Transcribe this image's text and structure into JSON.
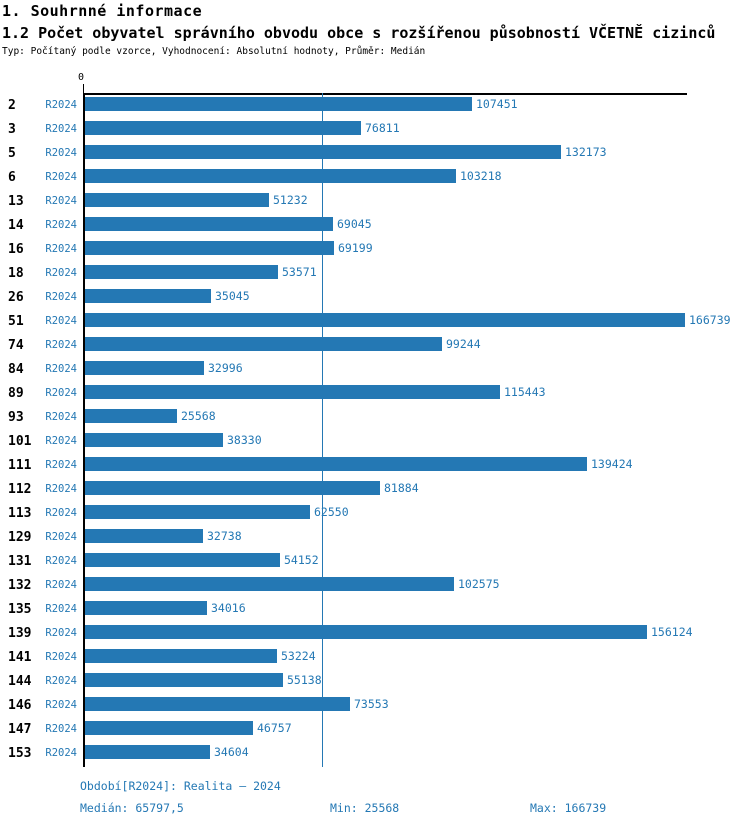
{
  "header": {
    "title": "1. Souhrnné informace",
    "subtitle": "1.2 Počet obyvatel správního obvodu obce s rozšířenou působností VČETNĚ cizinců",
    "meta": "Typ: Počítaný podle vzorce, Vyhodnocení: Absolutní hodnoty, Průměr: Medián"
  },
  "chart_data": {
    "type": "bar",
    "orientation": "horizontal",
    "title": "1.2 Počet obyvatel správního obvodu obce s rozšířenou působností VČETNĚ cizinců",
    "series_label": "R2024",
    "axis_zero_label": "0",
    "categories": [
      "2",
      "3",
      "5",
      "6",
      "13",
      "14",
      "16",
      "18",
      "26",
      "51",
      "74",
      "84",
      "89",
      "93",
      "101",
      "111",
      "112",
      "113",
      "129",
      "131",
      "132",
      "135",
      "139",
      "141",
      "144",
      "146",
      "147",
      "153"
    ],
    "values": [
      107451,
      76811,
      132173,
      103218,
      51232,
      69045,
      69199,
      53571,
      35045,
      166739,
      99244,
      32996,
      115443,
      25568,
      38330,
      139424,
      81884,
      62550,
      32738,
      54152,
      102575,
      34016,
      156124,
      53224,
      55138,
      73553,
      46757,
      34604
    ],
    "median": 65797.5,
    "min": 25568,
    "max": 166739,
    "xlim": [
      0,
      167000
    ],
    "grid": false,
    "legend": false,
    "bar_color": "#2478b4",
    "median_line_color": "#2478b4",
    "text_color": "#2478b4",
    "axis_color": "#000000"
  },
  "footer": {
    "period": "Období[R2024]: Realita – 2024",
    "median": "Medián: 65797,5",
    "min": "Min: 25568",
    "max": "Max: 166739"
  }
}
